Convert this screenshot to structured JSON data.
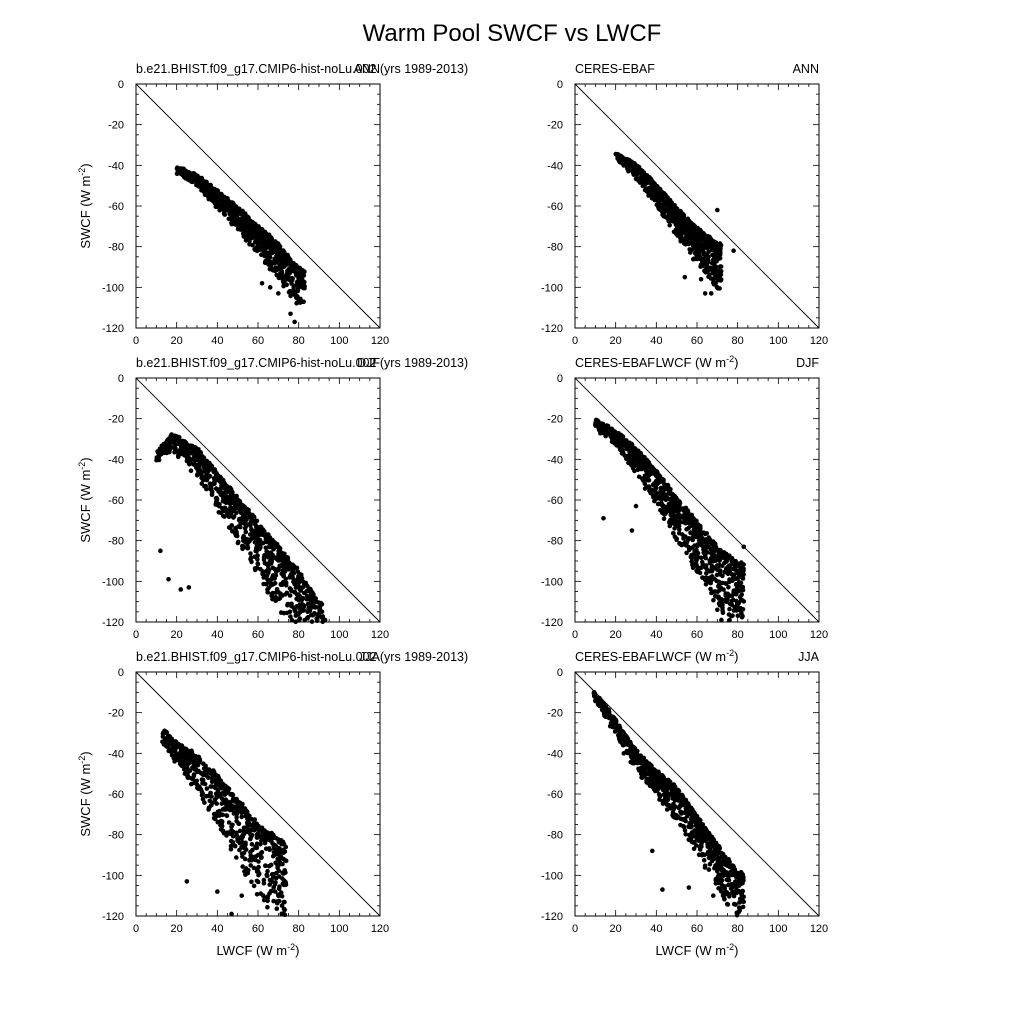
{
  "figure": {
    "title": "Warm Pool SWCF vs LWCF",
    "xlabel": "LWCF (W m",
    "ylabel": "SWCF (W m",
    "unit_exponent": "-2",
    "xticks": [
      "0",
      "20",
      "40",
      "60",
      "80",
      "100",
      "120"
    ],
    "yticks": [
      "0",
      "-20",
      "-40",
      "-60",
      "-80",
      "-100",
      "-120"
    ]
  },
  "chart_data": [
    {
      "type": "scatter",
      "left_label": "b.e21.BHIST.f09_g17.CMIP6-hist-noLu.002 (yrs 1989-2013)",
      "season": "ANN",
      "xlabel": "",
      "ylabel": "SWCF (W m-2)",
      "xlim": [
        0,
        120
      ],
      "ylim": [
        -120,
        0
      ],
      "reference_line": [
        [
          0,
          0
        ],
        [
          120,
          -120
        ]
      ],
      "cloud": {
        "points": 900,
        "x_range": [
          20,
          83
        ],
        "ridge": [
          [
            20,
            -42
          ],
          [
            30,
            -46
          ],
          [
            40,
            -54
          ],
          [
            50,
            -62
          ],
          [
            60,
            -71
          ],
          [
            70,
            -80
          ],
          [
            80,
            -92
          ]
        ],
        "spread_below": [
          2,
          20
        ],
        "extreme_outliers": [
          [
            80,
            -107
          ],
          [
            76,
            -113
          ],
          [
            78,
            -117
          ],
          [
            70,
            -103
          ],
          [
            66,
            -100
          ],
          [
            62,
            -98
          ]
        ]
      },
      "grid": false
    },
    {
      "type": "scatter",
      "left_label": "CERES-EBAF",
      "season": "ANN",
      "xlabel": "LWCF (W m-2)",
      "ylabel": "",
      "xlim": [
        0,
        120
      ],
      "ylim": [
        -120,
        0
      ],
      "reference_line": [
        [
          0,
          0
        ],
        [
          120,
          -120
        ]
      ],
      "cloud": {
        "points": 900,
        "x_range": [
          20,
          72
        ],
        "ridge": [
          [
            20,
            -35
          ],
          [
            30,
            -41
          ],
          [
            40,
            -51
          ],
          [
            50,
            -62
          ],
          [
            60,
            -72
          ],
          [
            70,
            -80
          ]
        ],
        "spread_below": [
          2,
          22
        ],
        "extreme_outliers": [
          [
            64,
            -103
          ],
          [
            67,
            -103
          ],
          [
            54,
            -95
          ],
          [
            62,
            -96
          ],
          [
            78,
            -82
          ],
          [
            70,
            -62
          ]
        ]
      },
      "grid": false
    },
    {
      "type": "scatter",
      "left_label": "b.e21.BHIST.f09_g17.CMIP6-hist-noLu.002 (yrs 1989-2013)",
      "season": "DJF",
      "xlabel": "",
      "ylabel": "SWCF (W m-2)",
      "xlim": [
        0,
        120
      ],
      "ylim": [
        -120,
        0
      ],
      "reference_line": [
        [
          0,
          0
        ],
        [
          120,
          -120
        ]
      ],
      "cloud": {
        "points": 1000,
        "x_range": [
          10,
          92
        ],
        "ridge": [
          [
            10,
            -38
          ],
          [
            18,
            -29
          ],
          [
            30,
            -36
          ],
          [
            40,
            -48
          ],
          [
            50,
            -60
          ],
          [
            60,
            -72
          ],
          [
            70,
            -84
          ],
          [
            80,
            -96
          ],
          [
            90,
            -112
          ]
        ],
        "spread_below": [
          4,
          40
        ],
        "extreme_outliers": [
          [
            12,
            -85
          ],
          [
            16,
            -99
          ],
          [
            22,
            -104
          ],
          [
            26,
            -103
          ],
          [
            90,
            -116
          ],
          [
            93,
            -119
          ]
        ]
      },
      "grid": false
    },
    {
      "type": "scatter",
      "left_label": "CERES-EBAF",
      "season": "DJF",
      "xlabel": "LWCF (W m-2)",
      "ylabel": "",
      "xlim": [
        0,
        120
      ],
      "ylim": [
        -120,
        0
      ],
      "reference_line": [
        [
          0,
          0
        ],
        [
          120,
          -120
        ]
      ],
      "cloud": {
        "points": 950,
        "x_range": [
          10,
          83
        ],
        "ridge": [
          [
            10,
            -22
          ],
          [
            20,
            -27
          ],
          [
            30,
            -36
          ],
          [
            40,
            -47
          ],
          [
            50,
            -60
          ],
          [
            60,
            -72
          ],
          [
            70,
            -84
          ],
          [
            80,
            -92
          ]
        ],
        "spread_below": [
          3,
          35
        ],
        "extreme_outliers": [
          [
            14,
            -69
          ],
          [
            28,
            -75
          ],
          [
            30,
            -63
          ],
          [
            72,
            -119
          ],
          [
            70,
            -114
          ],
          [
            83,
            -83
          ]
        ]
      },
      "grid": false
    },
    {
      "type": "scatter",
      "left_label": "b.e21.BHIST.f09_g17.CMIP6-hist-noLu.002 (yrs 1989-2013)",
      "season": "JJA",
      "xlabel": "LWCF (W m-2)",
      "ylabel": "SWCF (W m-2)",
      "xlim": [
        0,
        120
      ],
      "ylim": [
        -120,
        0
      ],
      "reference_line": [
        [
          0,
          0
        ],
        [
          120,
          -120
        ]
      ],
      "cloud": {
        "points": 650,
        "x_range": [
          13,
          74
        ],
        "ridge": [
          [
            14,
            -30
          ],
          [
            20,
            -36
          ],
          [
            30,
            -42
          ],
          [
            40,
            -52
          ],
          [
            50,
            -64
          ],
          [
            60,
            -75
          ],
          [
            70,
            -84
          ]
        ],
        "spread_below": [
          6,
          45
        ],
        "extreme_outliers": [
          [
            47,
            -119
          ],
          [
            52,
            -110
          ],
          [
            40,
            -108
          ],
          [
            25,
            -103
          ],
          [
            60,
            -98
          ]
        ]
      },
      "grid": false
    },
    {
      "type": "scatter",
      "left_label": "CERES-EBAF",
      "season": "JJA",
      "xlabel": "LWCF (W m-2)",
      "ylabel": "",
      "xlim": [
        0,
        120
      ],
      "ylim": [
        -120,
        0
      ],
      "reference_line": [
        [
          0,
          0
        ],
        [
          120,
          -120
        ]
      ],
      "cloud": {
        "points": 900,
        "x_range": [
          9,
          83
        ],
        "ridge": [
          [
            9,
            -10
          ],
          [
            20,
            -25
          ],
          [
            30,
            -40
          ],
          [
            40,
            -50
          ],
          [
            50,
            -58
          ],
          [
            60,
            -72
          ],
          [
            70,
            -86
          ],
          [
            80,
            -100
          ]
        ],
        "spread_below": [
          3,
          25
        ],
        "extreme_outliers": [
          [
            43,
            -107
          ],
          [
            56,
            -106
          ],
          [
            68,
            -110
          ],
          [
            82,
            -109
          ],
          [
            38,
            -88
          ],
          [
            24,
            -40
          ]
        ]
      },
      "grid": false
    }
  ]
}
